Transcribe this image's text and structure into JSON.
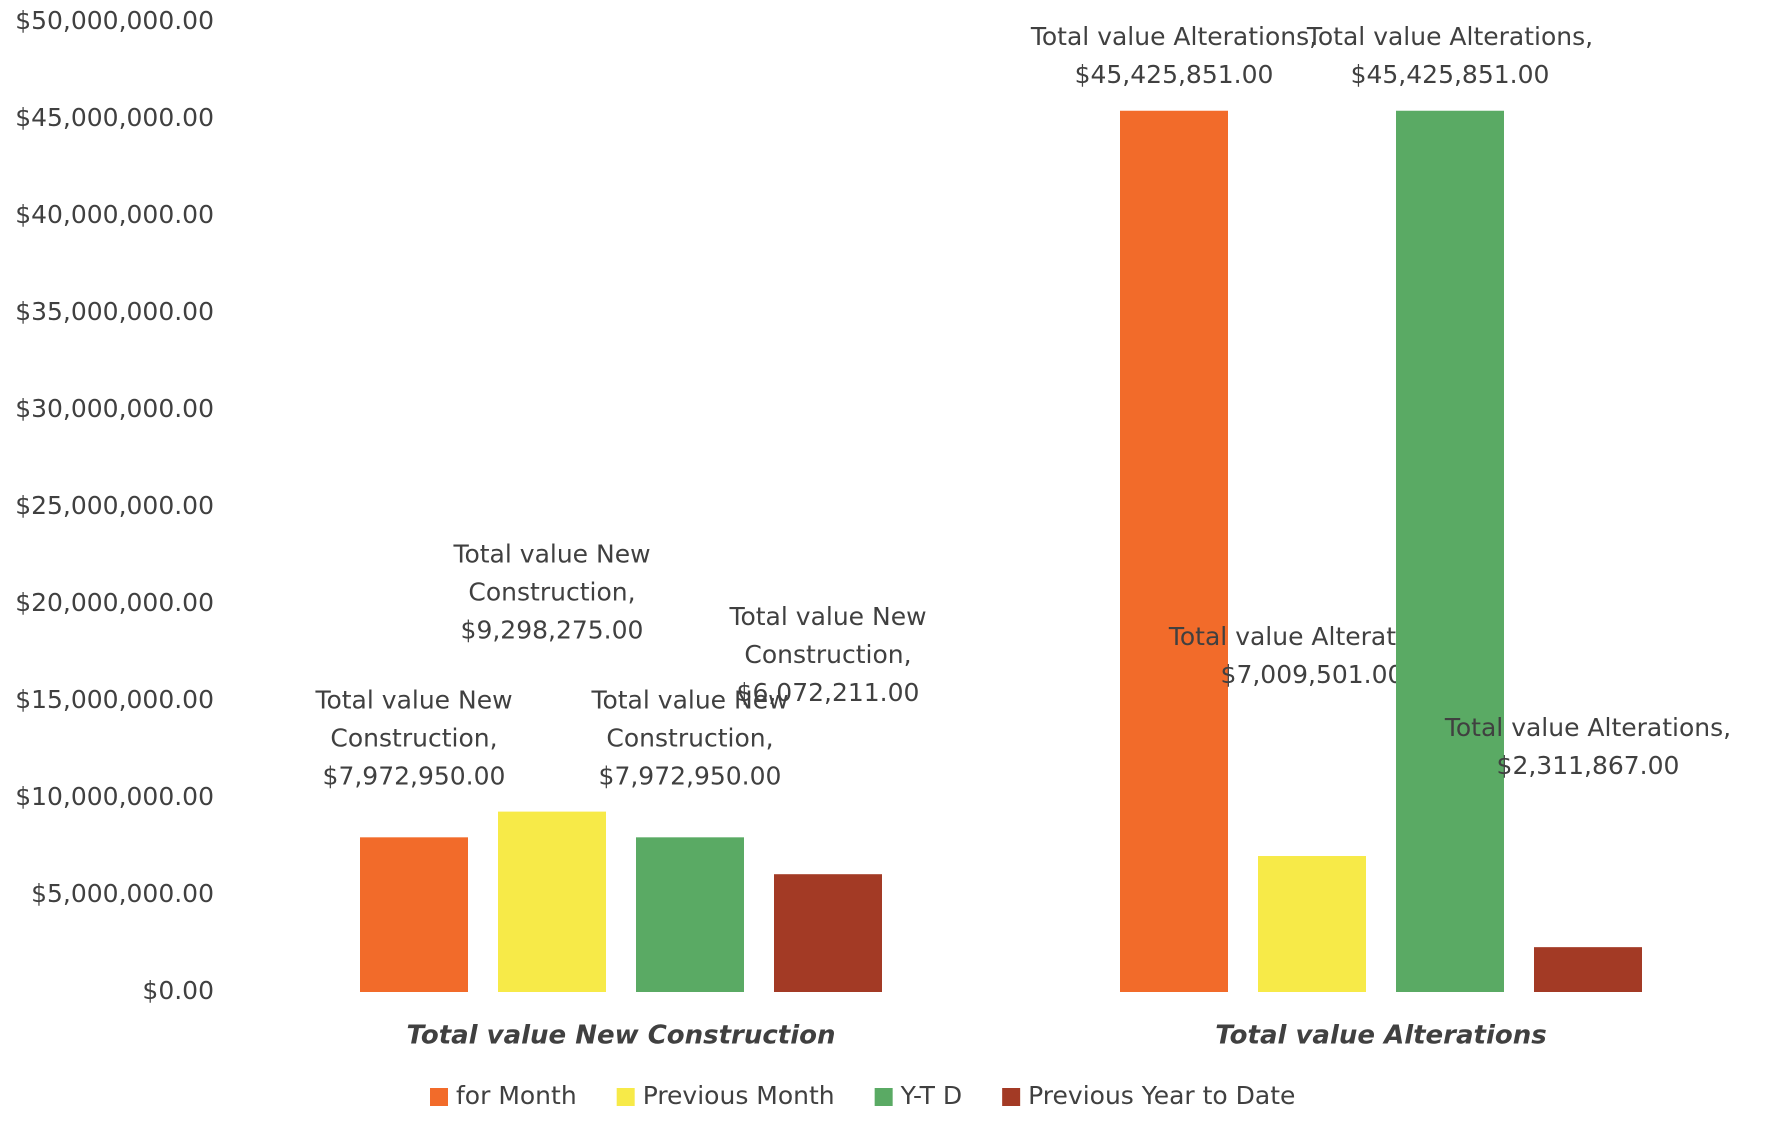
{
  "chart_data": {
    "type": "bar",
    "categories": [
      "Total value New Construction",
      "Total value Alterations"
    ],
    "series": [
      {
        "name": "for Month",
        "color": "#f26b2a",
        "values": [
          7972950,
          45425851
        ],
        "value_labels": [
          "Total value New Construction, $7,972,950.00",
          "Total value Alterations, $45,425,851.00"
        ]
      },
      {
        "name": "Previous Month",
        "color": "#f7ea48",
        "values": [
          9298275,
          7009501
        ],
        "value_labels": [
          "Total value New Construction, $9,298,275.00",
          "Total value Alterations, $7,009,501.00"
        ]
      },
      {
        "name": "Y-T D",
        "color": "#5aaa64",
        "values": [
          7972950,
          45425851
        ],
        "value_labels": [
          "Total value New Construction, $7,972,950.00",
          "Total value Alterations, $45,425,851.00"
        ]
      },
      {
        "name": "Previous Year to Date",
        "color": "#a33a25",
        "values": [
          6072211,
          2311867
        ],
        "value_labels": [
          "Total value New Construction, $6,072,211.00",
          "Total value Alterations, $2,311,867.00"
        ]
      }
    ],
    "ylim": [
      0,
      50000000
    ],
    "yticks": [
      {
        "value": 0,
        "label": "$0.00"
      },
      {
        "value": 5000000,
        "label": "$5,000,000.00"
      },
      {
        "value": 10000000,
        "label": "$10,000,000.00"
      },
      {
        "value": 15000000,
        "label": "$15,000,000.00"
      },
      {
        "value": 20000000,
        "label": "$20,000,000.00"
      },
      {
        "value": 25000000,
        "label": "$25,000,000.00"
      },
      {
        "value": 30000000,
        "label": "$30,000,000.00"
      },
      {
        "value": 35000000,
        "label": "$35,000,000.00"
      },
      {
        "value": 40000000,
        "label": "$40,000,000.00"
      },
      {
        "value": 45000000,
        "label": "$45,000,000.00"
      },
      {
        "value": 50000000,
        "label": "$50,000,000.00"
      }
    ],
    "grid": false,
    "legend": "bottom"
  }
}
